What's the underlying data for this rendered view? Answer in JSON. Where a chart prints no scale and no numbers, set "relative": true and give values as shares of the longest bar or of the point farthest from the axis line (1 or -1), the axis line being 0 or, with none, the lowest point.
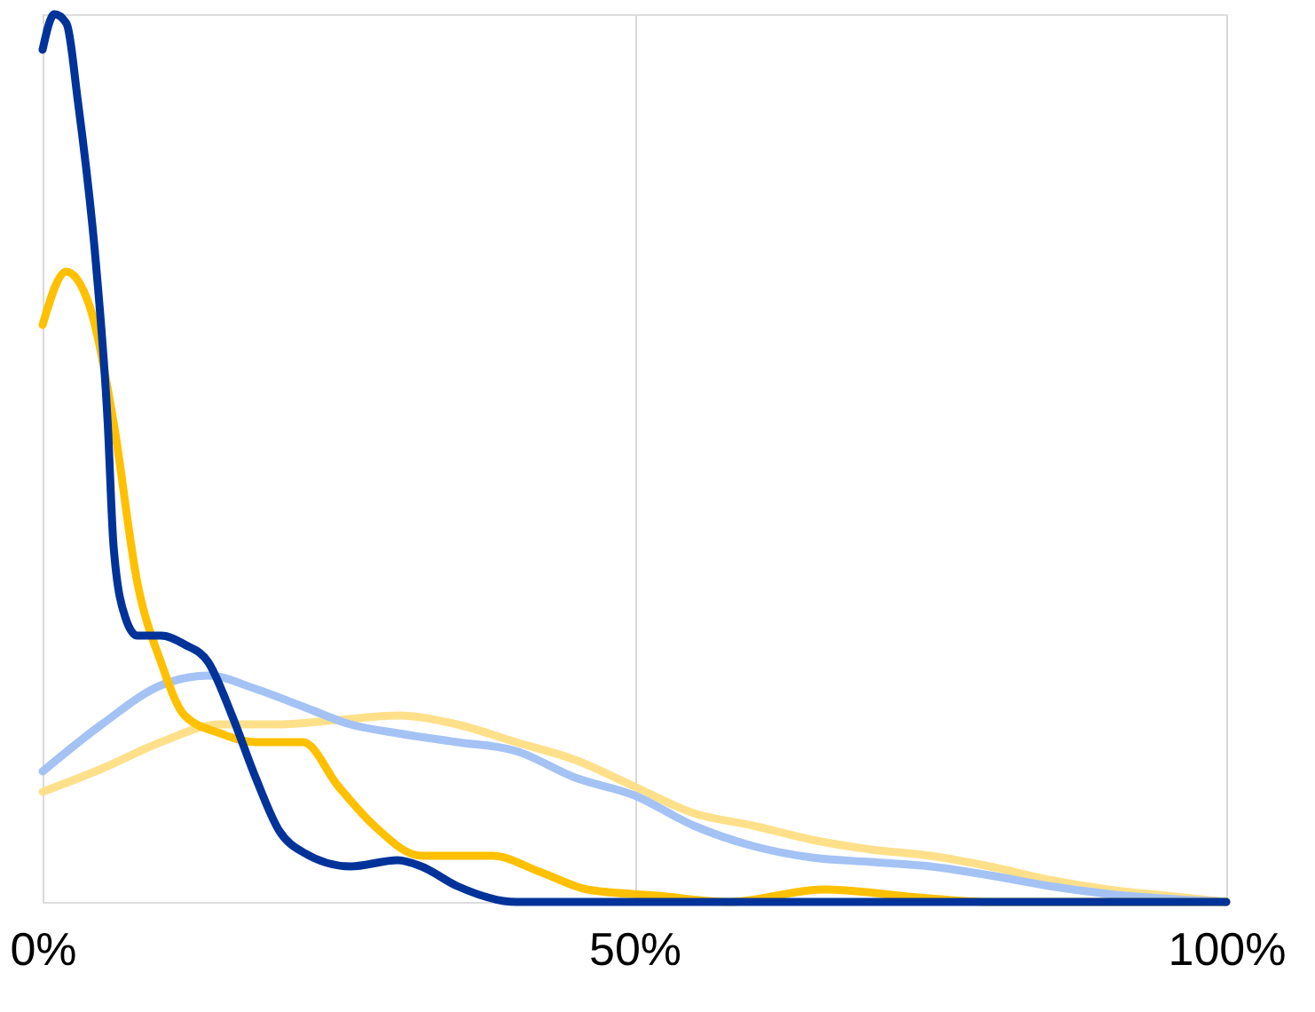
{
  "chart_data": {
    "type": "line",
    "relative": true,
    "grid": "x",
    "line_style": "solid",
    "marker": "none",
    "xlim": [
      0,
      100
    ],
    "xticks": [
      {
        "value": 0,
        "label": "0%"
      },
      {
        "value": 50,
        "label": "50%"
      },
      {
        "value": 100,
        "label": "100%"
      }
    ],
    "series": [
      {
        "color": "#ffe08a",
        "x": [
          0,
          5,
          10,
          15,
          20,
          25,
          30,
          35,
          40,
          45,
          50,
          55,
          60,
          65,
          70,
          75,
          80,
          85,
          90,
          95,
          100
        ],
        "values": [
          0.124,
          0.15,
          0.18,
          0.2,
          0.2,
          0.205,
          0.21,
          0.2,
          0.18,
          0.16,
          0.13,
          0.1,
          0.086,
          0.07,
          0.059,
          0.052,
          0.04,
          0.025,
          0.014,
          0.007,
          0
        ]
      },
      {
        "color": "#a4c2f4",
        "x": [
          0,
          5,
          10,
          14,
          18,
          22,
          26,
          30,
          35,
          40,
          45,
          50,
          55,
          60,
          65,
          70,
          75,
          80,
          85,
          90,
          100
        ],
        "values": [
          0.147,
          0.2,
          0.244,
          0.255,
          0.24,
          0.22,
          0.2,
          0.19,
          0.18,
          0.17,
          0.14,
          0.12,
          0.086,
          0.063,
          0.05,
          0.045,
          0.04,
          0.03,
          0.018,
          0.009,
          0
        ]
      },
      {
        "color": "#ffc000",
        "x": [
          0,
          2,
          4,
          6,
          8,
          10,
          12,
          15,
          18,
          22,
          25,
          28,
          32,
          38,
          42,
          46,
          52,
          58,
          66,
          74,
          80,
          100
        ],
        "values": [
          0.65,
          0.71,
          0.67,
          0.54,
          0.36,
          0.27,
          0.21,
          0.19,
          0.18,
          0.18,
          0.13,
          0.086,
          0.052,
          0.052,
          0.034,
          0.014,
          0.007,
          0,
          0.014,
          0.005,
          0,
          0
        ]
      },
      {
        "color": "#003399",
        "x": [
          0,
          1,
          2,
          3,
          4.5,
          5.5,
          6,
          7,
          8,
          10,
          12,
          14,
          16,
          18,
          20,
          22,
          26,
          30,
          32,
          35,
          40,
          100
        ],
        "values": [
          0.96,
          1.0,
          0.99,
          0.9,
          0.72,
          0.54,
          0.4,
          0.32,
          0.3,
          0.3,
          0.29,
          0.27,
          0.21,
          0.14,
          0.08,
          0.056,
          0.04,
          0.047,
          0.04,
          0.018,
          0,
          0
        ]
      }
    ]
  }
}
